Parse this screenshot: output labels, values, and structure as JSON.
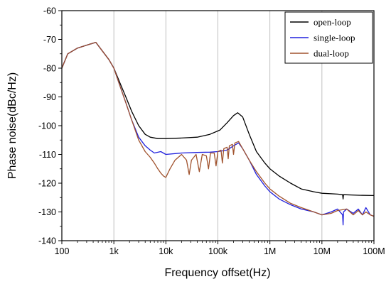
{
  "chart_data": {
    "type": "line",
    "xlabel": "Frequency offset(Hz)",
    "ylabel": "Phase noise(dBc/Hz)",
    "x_scale": "log",
    "xlim": [
      100,
      100000000
    ],
    "ylim": [
      -140,
      -60
    ],
    "x_ticks": [
      {
        "value": 100,
        "label": "100"
      },
      {
        "value": 1000,
        "label": "1k"
      },
      {
        "value": 10000,
        "label": "10k"
      },
      {
        "value": 100000,
        "label": "100k"
      },
      {
        "value": 1000000,
        "label": "1M"
      },
      {
        "value": 10000000,
        "label": "10M"
      },
      {
        "value": 100000000,
        "label": "100M"
      }
    ],
    "y_ticks": [
      -60,
      -70,
      -80,
      -90,
      -100,
      -110,
      -120,
      -130,
      -140
    ],
    "grid": "vertical",
    "legend_position": "top-right",
    "series": [
      {
        "name": "open-loop",
        "color": "#000000",
        "points": [
          [
            100,
            -80
          ],
          [
            130,
            -75
          ],
          [
            200,
            -73
          ],
          [
            300,
            -72
          ],
          [
            450,
            -71
          ],
          [
            600,
            -74
          ],
          [
            800,
            -77
          ],
          [
            1000,
            -80
          ],
          [
            1300,
            -85
          ],
          [
            1700,
            -90
          ],
          [
            2200,
            -95
          ],
          [
            3000,
            -100
          ],
          [
            4000,
            -103
          ],
          [
            5000,
            -104
          ],
          [
            7000,
            -104.5
          ],
          [
            10000,
            -104.5
          ],
          [
            20000,
            -104.3
          ],
          [
            40000,
            -104
          ],
          [
            70000,
            -103
          ],
          [
            110000,
            -101.5
          ],
          [
            150000,
            -99
          ],
          [
            200000,
            -96.5
          ],
          [
            240000,
            -95.5
          ],
          [
            300000,
            -97
          ],
          [
            400000,
            -103
          ],
          [
            550000,
            -109
          ],
          [
            800000,
            -113
          ],
          [
            1000000,
            -115
          ],
          [
            1500000,
            -117.5
          ],
          [
            2500000,
            -120
          ],
          [
            4000000,
            -122
          ],
          [
            7000000,
            -123
          ],
          [
            10000000,
            -123.5
          ],
          [
            20000000,
            -123.8
          ],
          [
            25000000,
            -124
          ],
          [
            25500000,
            -125.5
          ],
          [
            26000000,
            -124
          ],
          [
            50000000,
            -124.2
          ],
          [
            100000000,
            -124.3
          ]
        ]
      },
      {
        "name": "single-loop",
        "color": "#2020dd",
        "points": [
          [
            100,
            -80
          ],
          [
            130,
            -75
          ],
          [
            200,
            -73
          ],
          [
            300,
            -72
          ],
          [
            450,
            -71
          ],
          [
            600,
            -74
          ],
          [
            800,
            -77
          ],
          [
            1000,
            -80
          ],
          [
            1300,
            -86
          ],
          [
            1700,
            -92
          ],
          [
            2200,
            -98
          ],
          [
            3000,
            -104
          ],
          [
            4000,
            -107
          ],
          [
            5000,
            -108.5
          ],
          [
            6000,
            -109.5
          ],
          [
            8000,
            -109
          ],
          [
            10000,
            -110
          ],
          [
            20000,
            -109.5
          ],
          [
            40000,
            -109.3
          ],
          [
            70000,
            -109.2
          ],
          [
            100000,
            -109
          ],
          [
            150000,
            -108.5
          ],
          [
            200000,
            -107
          ],
          [
            250000,
            -106
          ],
          [
            300000,
            -108
          ],
          [
            400000,
            -112
          ],
          [
            550000,
            -117
          ],
          [
            800000,
            -121
          ],
          [
            1000000,
            -123
          ],
          [
            1500000,
            -125.5
          ],
          [
            2500000,
            -127.5
          ],
          [
            4000000,
            -129
          ],
          [
            7000000,
            -130
          ],
          [
            10000000,
            -131
          ],
          [
            15000000,
            -130
          ],
          [
            20000000,
            -129
          ],
          [
            25000000,
            -131
          ],
          [
            25500000,
            -134.5
          ],
          [
            26000000,
            -130
          ],
          [
            30000000,
            -129
          ],
          [
            40000000,
            -130.5
          ],
          [
            50000000,
            -129
          ],
          [
            60000000,
            -131
          ],
          [
            70000000,
            -128.5
          ],
          [
            85000000,
            -131
          ],
          [
            100000000,
            -131.5
          ]
        ]
      },
      {
        "name": "dual-loop",
        "color": "#a0522d",
        "points": [
          [
            100,
            -80
          ],
          [
            130,
            -75
          ],
          [
            200,
            -73
          ],
          [
            300,
            -72
          ],
          [
            450,
            -71
          ],
          [
            600,
            -74
          ],
          [
            800,
            -77
          ],
          [
            1000,
            -80
          ],
          [
            1300,
            -86
          ],
          [
            1700,
            -92
          ],
          [
            2200,
            -98
          ],
          [
            3000,
            -105
          ],
          [
            4000,
            -109
          ],
          [
            5000,
            -111
          ],
          [
            6000,
            -113
          ],
          [
            7000,
            -115
          ],
          [
            8000,
            -116.5
          ],
          [
            9000,
            -117.5
          ],
          [
            10000,
            -118
          ],
          [
            12000,
            -115
          ],
          [
            15000,
            -112
          ],
          [
            20000,
            -110
          ],
          [
            25000,
            -112
          ],
          [
            28000,
            -117
          ],
          [
            31000,
            -112
          ],
          [
            38000,
            -110
          ],
          [
            44000,
            -116
          ],
          [
            50000,
            -110
          ],
          [
            60000,
            -110.5
          ],
          [
            66000,
            -115
          ],
          [
            72000,
            -109.5
          ],
          [
            85000,
            -109.5
          ],
          [
            92000,
            -114
          ],
          [
            100000,
            -109
          ],
          [
            115000,
            -108.5
          ],
          [
            122000,
            -113
          ],
          [
            130000,
            -108
          ],
          [
            150000,
            -107.5
          ],
          [
            158000,
            -111.5
          ],
          [
            166000,
            -107
          ],
          [
            190000,
            -106.5
          ],
          [
            200000,
            -110
          ],
          [
            212000,
            -106
          ],
          [
            250000,
            -105.5
          ],
          [
            300000,
            -108
          ],
          [
            400000,
            -112
          ],
          [
            550000,
            -116
          ],
          [
            800000,
            -120
          ],
          [
            1000000,
            -122
          ],
          [
            1500000,
            -124.5
          ],
          [
            2500000,
            -127
          ],
          [
            4000000,
            -128.5
          ],
          [
            7000000,
            -130
          ],
          [
            10000000,
            -131
          ],
          [
            15000000,
            -130.5
          ],
          [
            20000000,
            -129.5
          ],
          [
            30000000,
            -129
          ],
          [
            40000000,
            -131
          ],
          [
            50000000,
            -129.5
          ],
          [
            60000000,
            -131
          ],
          [
            70000000,
            -130
          ],
          [
            85000000,
            -131
          ],
          [
            100000000,
            -131.5
          ]
        ]
      }
    ]
  }
}
